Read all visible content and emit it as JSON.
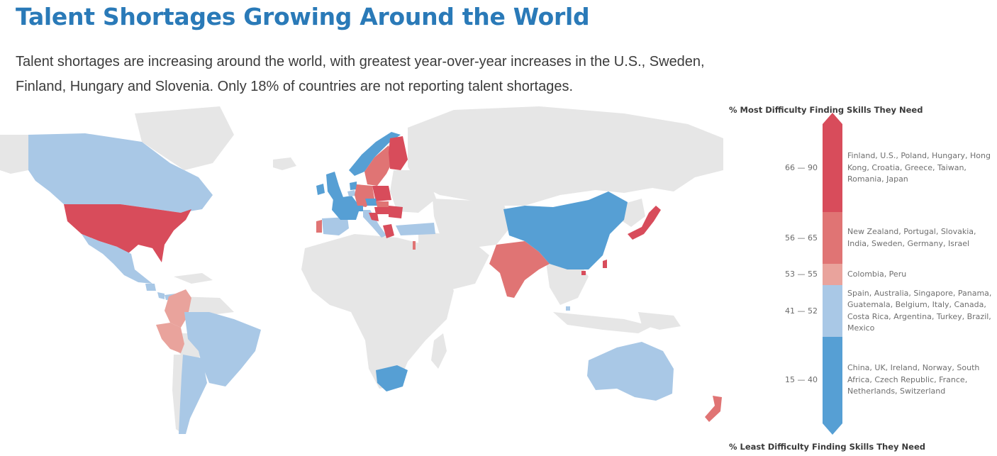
{
  "header": {
    "title": "Talent Shortages Growing Around the World",
    "subtitle": "Talent shortages are increasing around the world, with greatest year-over-year increases in the U.S., Sweden, Finland, Hungary and Slovenia. Only 18% of countries are not reporting talent shortages."
  },
  "legend": {
    "top_label": "% Most Difficulty Finding Skills They Need",
    "bottom_label": "% Least Difficulty Finding Skills They Need",
    "bands": [
      {
        "range": "66 — 90",
        "color": "#d84c5b",
        "countries": "Finland, U.S., Poland, Hungary, Hong Kong, Croatia, Greece, Taiwan, Romania, Japan"
      },
      {
        "range": "56 — 65",
        "color": "#e07474",
        "countries": "New Zealand, Portugal, Slovakia, India, Sweden, Germany, Israel"
      },
      {
        "range": "53 — 55",
        "color": "#e9a39c",
        "countries": "Colombia, Peru"
      },
      {
        "range": "41 — 52",
        "color": "#a9c8e6",
        "countries": "Spain, Australia, Singapore, Panama, Guatemala, Belgium, Italy, Canada, Costa Rica, Argentina, Turkey, Brazil, Mexico"
      },
      {
        "range": "15 — 40",
        "color": "#569fd4",
        "countries": "China, UK, Ireland, Norway, South Africa, Czech Republic, France, Netherlands, Switzerland"
      }
    ]
  },
  "map": {
    "no_data_color": "#e6e6e6",
    "countries": [
      {
        "name": "Canada",
        "band": "41 — 52"
      },
      {
        "name": "U.S.",
        "band": "66 — 90"
      },
      {
        "name": "Mexico",
        "band": "41 — 52"
      },
      {
        "name": "Guatemala",
        "band": "41 — 52"
      },
      {
        "name": "Costa Rica",
        "band": "41 — 52"
      },
      {
        "name": "Panama",
        "band": "41 — 52"
      },
      {
        "name": "Colombia",
        "band": "53 — 55"
      },
      {
        "name": "Peru",
        "band": "53 — 55"
      },
      {
        "name": "Brazil",
        "band": "41 — 52"
      },
      {
        "name": "Argentina",
        "band": "41 — 52"
      },
      {
        "name": "Ireland",
        "band": "15 — 40"
      },
      {
        "name": "UK",
        "band": "15 — 40"
      },
      {
        "name": "Norway",
        "band": "15 — 40"
      },
      {
        "name": "Sweden",
        "band": "56 — 65"
      },
      {
        "name": "Finland",
        "band": "66 — 90"
      },
      {
        "name": "Portugal",
        "band": "56 — 65"
      },
      {
        "name": "Spain",
        "band": "41 — 52"
      },
      {
        "name": "France",
        "band": "15 — 40"
      },
      {
        "name": "Belgium",
        "band": "41 — 52"
      },
      {
        "name": "Netherlands",
        "band": "15 — 40"
      },
      {
        "name": "Germany",
        "band": "56 — 65"
      },
      {
        "name": "Switzerland",
        "band": "15 — 40"
      },
      {
        "name": "Italy",
        "band": "41 — 52"
      },
      {
        "name": "Poland",
        "band": "66 — 90"
      },
      {
        "name": "Czech Republic",
        "band": "15 — 40"
      },
      {
        "name": "Slovakia",
        "band": "56 — 65"
      },
      {
        "name": "Hungary",
        "band": "66 — 90"
      },
      {
        "name": "Croatia",
        "band": "66 — 90"
      },
      {
        "name": "Romania",
        "band": "66 — 90"
      },
      {
        "name": "Greece",
        "band": "66 — 90"
      },
      {
        "name": "Turkey",
        "band": "41 — 52"
      },
      {
        "name": "Israel",
        "band": "56 — 65"
      },
      {
        "name": "India",
        "band": "56 — 65"
      },
      {
        "name": "China",
        "band": "15 — 40"
      },
      {
        "name": "Hong Kong",
        "band": "66 — 90"
      },
      {
        "name": "Taiwan",
        "band": "66 — 90"
      },
      {
        "name": "Japan",
        "band": "66 — 90"
      },
      {
        "name": "Singapore",
        "band": "41 — 52"
      },
      {
        "name": "South Africa",
        "band": "15 — 40"
      },
      {
        "name": "Australia",
        "band": "41 — 52"
      },
      {
        "name": "New Zealand",
        "band": "56 — 65"
      }
    ]
  }
}
